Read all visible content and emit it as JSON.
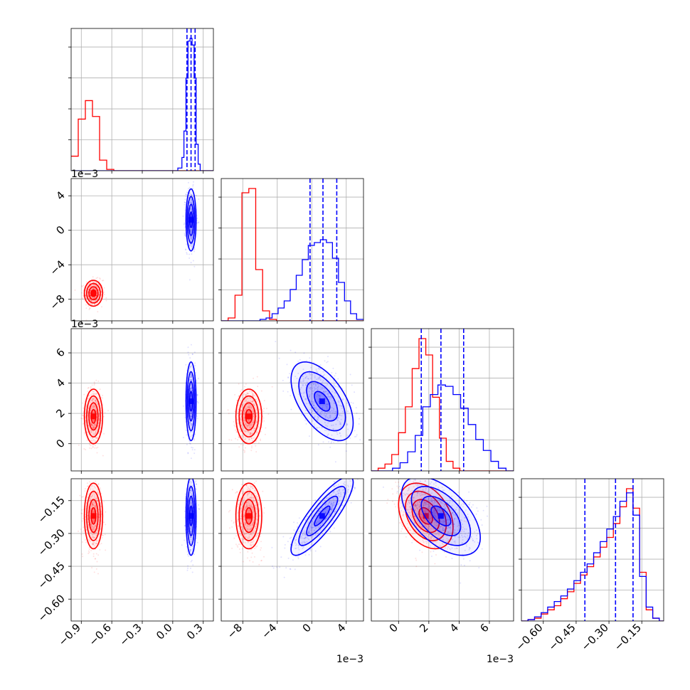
{
  "chart_data": {
    "type": "corner",
    "parameters": [
      {
        "id": "p0",
        "range": [
          -1.0,
          0.4
        ],
        "ticks": [
          "−0.9",
          "−0.6",
          "−0.3",
          "0.0",
          "0.3"
        ],
        "tick_values": [
          -0.9,
          -0.6,
          -0.3,
          0.0,
          0.3
        ],
        "offset_text": ""
      },
      {
        "id": "p1",
        "range": [
          -0.0105,
          0.006
        ],
        "ticks": [
          "−8",
          "−4",
          "0",
          "4"
        ],
        "tick_values": [
          -0.008,
          -0.004,
          0.0,
          0.004
        ],
        "offset_text": "1e−3"
      },
      {
        "id": "p2",
        "range": [
          -0.0018,
          0.0076
        ],
        "ticks": [
          "0",
          "2",
          "4",
          "6"
        ],
        "tick_values": [
          0.0,
          0.002,
          0.004,
          0.006
        ],
        "offset_text": "1e−3"
      },
      {
        "id": "p3",
        "range": [
          -0.7,
          -0.05
        ],
        "ticks": [
          "−0.60",
          "−0.45",
          "−0.30",
          "−0.15"
        ],
        "tick_values": [
          -0.6,
          -0.45,
          -0.3,
          -0.15
        ],
        "offset_text": ""
      }
    ],
    "colors": {
      "red": "#ff0000",
      "blue": "#0000ff",
      "grid": "#b0b0b0"
    },
    "series": [
      {
        "color": "red",
        "means": [
          -0.78,
          -0.0073,
          0.0018,
          -0.22
        ],
        "sigmas": [
          0.045,
          0.00075,
          0.0009,
          0.075
        ],
        "correlations": {
          "1-0": 0.0,
          "2-0": 0.0,
          "3-0": 0.0,
          "2-1": 0.0,
          "3-1": 0.0,
          "3-2": -0.35
        },
        "hist": {
          "p0": {
            "edges": [
              -1.0,
              -0.93,
              -0.86,
              -0.79,
              -0.72,
              -0.65,
              -0.58,
              0.4
            ],
            "counts": [
              0.11,
              0.39,
              0.53,
              0.41,
              0.08,
              0.01,
              0.0
            ]
          },
          "p1": {
            "edges": [
              -0.0105,
              -0.0097,
              -0.0089,
              -0.0081,
              -0.0073,
              -0.0065,
              -0.0057,
              -0.0049,
              -0.0041,
              0.006
            ],
            "counts": [
              0.0,
              0.02,
              0.18,
              0.9,
              0.93,
              0.36,
              0.07,
              0.01,
              0.0
            ]
          },
          "p2": {
            "edges": [
              -0.0018,
              -0.00135,
              -0.0009,
              -0.00045,
              0.0,
              0.00045,
              0.0009,
              0.00135,
              0.0018,
              0.00225,
              0.0027,
              0.00315,
              0.0036,
              0.00405,
              0.0045,
              0.0076
            ],
            "counts": [
              0.0,
              0.02,
              0.05,
              0.12,
              0.28,
              0.47,
              0.75,
              0.97,
              0.85,
              0.54,
              0.24,
              0.07,
              0.02,
              0.0,
              0.0
            ]
          },
          "p3": {
            "edges": [
              -0.7,
              -0.67,
              -0.64,
              -0.61,
              -0.58,
              -0.55,
              -0.52,
              -0.49,
              -0.46,
              -0.43,
              -0.4,
              -0.37,
              -0.34,
              -0.31,
              -0.28,
              -0.25,
              -0.22,
              -0.19,
              -0.16,
              -0.13,
              -0.1,
              -0.07,
              -0.05
            ],
            "counts": [
              0.0,
              0.01,
              0.02,
              0.05,
              0.08,
              0.11,
              0.16,
              0.21,
              0.27,
              0.33,
              0.39,
              0.46,
              0.53,
              0.6,
              0.7,
              0.82,
              0.95,
              0.81,
              0.35,
              0.08,
              0.02,
              0.0
            ]
          }
        }
      },
      {
        "color": "blue",
        "means": [
          0.18,
          0.0012,
          0.0028,
          -0.22
        ],
        "sigmas": [
          0.025,
          0.0018,
          0.0013,
          0.09
        ],
        "correlations": {
          "1-0": 0.0,
          "2-0": 0.0,
          "3-0": 0.0,
          "2-1": -0.55,
          "3-1": 0.85,
          "3-2": -0.55
        },
        "quantiles": {
          "p0": [
            0.14,
            0.18,
            0.22
          ],
          "p1": [
            -0.0002,
            0.0013,
            0.0029
          ],
          "p2": [
            0.0015,
            0.0028,
            0.0043
          ],
          "p3": [
            -0.41,
            -0.27,
            -0.19
          ]
        },
        "hist": {
          "p0": {
            "edges": [
              -1.0,
              0.05,
              0.09,
              0.11,
              0.13,
              0.15,
              0.17,
              0.19,
              0.21,
              0.23,
              0.25,
              0.27,
              0.4
            ],
            "counts": [
              0.0,
              0.02,
              0.1,
              0.3,
              0.7,
              0.98,
              1.0,
              0.95,
              0.7,
              0.2,
              0.05,
              0.0
            ]
          },
          "p1": {
            "edges": [
              -0.0105,
              -0.006,
              -0.0053,
              -0.0046,
              -0.0039,
              -0.0032,
              -0.0025,
              -0.0018,
              -0.0011,
              -0.0004,
              0.0003,
              0.001,
              0.0017,
              0.0024,
              0.0031,
              0.0038,
              0.0045,
              0.0052,
              0.006
            ],
            "counts": [
              0.0,
              0.01,
              0.02,
              0.05,
              0.09,
              0.14,
              0.22,
              0.32,
              0.43,
              0.53,
              0.55,
              0.57,
              0.55,
              0.44,
              0.27,
              0.14,
              0.05,
              0.01
            ]
          },
          "p2": {
            "edges": [
              -0.0018,
              -0.0004,
              0.0001,
              0.0006,
              0.0011,
              0.0016,
              0.0021,
              0.0026,
              0.0031,
              0.0036,
              0.0041,
              0.0046,
              0.0051,
              0.0056,
              0.0061,
              0.0066,
              0.0071,
              0.0076
            ],
            "counts": [
              0.0,
              0.02,
              0.06,
              0.14,
              0.26,
              0.47,
              0.56,
              0.63,
              0.62,
              0.56,
              0.46,
              0.34,
              0.23,
              0.15,
              0.07,
              0.02,
              0.0
            ]
          },
          "p3": {
            "edges": [
              -0.7,
              -0.67,
              -0.64,
              -0.61,
              -0.58,
              -0.55,
              -0.52,
              -0.49,
              -0.46,
              -0.43,
              -0.4,
              -0.37,
              -0.34,
              -0.31,
              -0.28,
              -0.25,
              -0.22,
              -0.19,
              -0.16,
              -0.13,
              -0.1,
              -0.07,
              -0.05
            ],
            "counts": [
              0.0,
              0.01,
              0.03,
              0.06,
              0.1,
              0.14,
              0.18,
              0.23,
              0.29,
              0.35,
              0.41,
              0.49,
              0.57,
              0.66,
              0.75,
              0.86,
              0.92,
              0.76,
              0.32,
              0.1,
              0.02,
              0.0
            ]
          }
        }
      }
    ]
  }
}
